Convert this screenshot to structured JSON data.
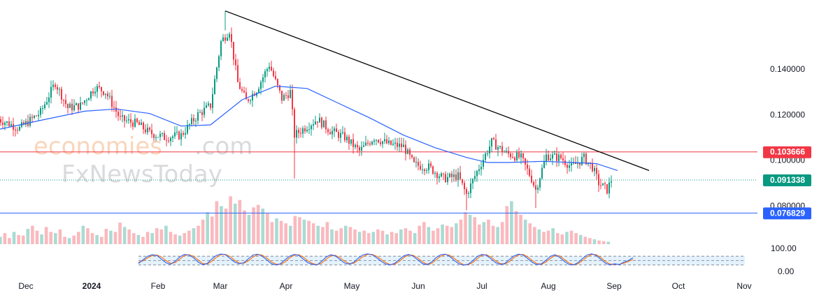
{
  "watermark": {
    "line1_left": "economies",
    "line1_right": ".com",
    "line2": "FxNewsToday"
  },
  "chart_data": {
    "type": "candlestick",
    "x_labels": [
      "Dec",
      "2024",
      "Feb",
      "Mar",
      "Apr",
      "May",
      "Jun",
      "Jul",
      "Aug",
      "Sep",
      "Oct",
      "Nov"
    ],
    "y_ticks": [
      "0.140000",
      "0.120000",
      "0.100000",
      "0.080000"
    ],
    "ylim": [
      0.071,
      0.168
    ],
    "price_tags": [
      {
        "label": "0.103666",
        "value": 0.103666,
        "color": "#f23645"
      },
      {
        "label": "0.091338",
        "value": 0.091338,
        "color": "#089981"
      },
      {
        "label": "0.076829",
        "value": 0.076829,
        "color": "#2962ff"
      }
    ],
    "horizontal_lines": [
      {
        "value": 0.103666,
        "color": "#f23645",
        "style": "solid"
      },
      {
        "value": 0.091338,
        "color": "#089981",
        "style": "dotted"
      },
      {
        "value": 0.076829,
        "color": "#2962ff",
        "style": "solid"
      }
    ],
    "trendline": {
      "from_date": "2024-03-12",
      "from_value": 0.1655,
      "to_date": "2024-09-30",
      "to_value": 0.0955,
      "color": "#000000"
    },
    "moving_average": {
      "color": "#2962ff",
      "points": [
        [
          "2023-11-25",
          0.1135
        ],
        [
          "2023-12-15",
          0.1175
        ],
        [
          "2024-01-05",
          0.1215
        ],
        [
          "2024-01-20",
          0.1225
        ],
        [
          "2024-02-05",
          0.1205
        ],
        [
          "2024-02-20",
          0.115
        ],
        [
          "2024-03-05",
          0.1155
        ],
        [
          "2024-03-20",
          0.1265
        ],
        [
          "2024-04-05",
          0.1325
        ],
        [
          "2024-04-20",
          0.1315
        ],
        [
          "2024-05-05",
          0.125
        ],
        [
          "2024-05-20",
          0.1185
        ],
        [
          "2024-06-05",
          0.111
        ],
        [
          "2024-06-20",
          0.1055
        ],
        [
          "2024-07-05",
          0.1012
        ],
        [
          "2024-07-15",
          0.099
        ],
        [
          "2024-07-25",
          0.099
        ],
        [
          "2024-08-10",
          0.0995
        ],
        [
          "2024-08-25",
          0.099
        ],
        [
          "2024-09-05",
          0.0985
        ],
        [
          "2024-09-15",
          0.0955
        ]
      ]
    },
    "price_path": [
      [
        "2023-11-25",
        0.118
      ],
      [
        "2023-12-05",
        0.114
      ],
      [
        "2023-12-15",
        0.121
      ],
      [
        "2023-12-22",
        0.134
      ],
      [
        "2023-12-28",
        0.123
      ],
      [
        "2024-01-03",
        0.124
      ],
      [
        "2024-01-10",
        0.132
      ],
      [
        "2024-01-15",
        0.13
      ],
      [
        "2024-01-22",
        0.118
      ],
      [
        "2024-01-30",
        0.116
      ],
      [
        "2024-02-05",
        0.112
      ],
      [
        "2024-02-12",
        0.11
      ],
      [
        "2024-02-20",
        0.111
      ],
      [
        "2024-02-28",
        0.12
      ],
      [
        "2024-03-05",
        0.124
      ],
      [
        "2024-03-10",
        0.152
      ],
      [
        "2024-03-14",
        0.157
      ],
      [
        "2024-03-18",
        0.134
      ],
      [
        "2024-03-22",
        0.126
      ],
      [
        "2024-03-27",
        0.131
      ],
      [
        "2024-04-02",
        0.142
      ],
      [
        "2024-04-08",
        0.127
      ],
      [
        "2024-04-12",
        0.13
      ],
      [
        "2024-04-14",
        0.111
      ],
      [
        "2024-04-20",
        0.115
      ],
      [
        "2024-04-25",
        0.118
      ],
      [
        "2024-05-01",
        0.113
      ],
      [
        "2024-05-08",
        0.11
      ],
      [
        "2024-05-15",
        0.104
      ],
      [
        "2024-05-22",
        0.11
      ],
      [
        "2024-05-29",
        0.107
      ],
      [
        "2024-06-05",
        0.106
      ],
      [
        "2024-06-10",
        0.098
      ],
      [
        "2024-06-17",
        0.097
      ],
      [
        "2024-06-24",
        0.092
      ],
      [
        "2024-07-01",
        0.093
      ],
      [
        "2024-07-05",
        0.085
      ],
      [
        "2024-07-10",
        0.095
      ],
      [
        "2024-07-17",
        0.108
      ],
      [
        "2024-07-24",
        0.103
      ],
      [
        "2024-07-31",
        0.101
      ],
      [
        "2024-08-05",
        0.092
      ],
      [
        "2024-08-07",
        0.087
      ],
      [
        "2024-08-12",
        0.102
      ],
      [
        "2024-08-19",
        0.101
      ],
      [
        "2024-08-24",
        0.097
      ],
      [
        "2024-08-30",
        0.101
      ],
      [
        "2024-09-03",
        0.097
      ],
      [
        "2024-09-06",
        0.09
      ],
      [
        "2024-09-10",
        0.087
      ],
      [
        "2024-09-12",
        0.0913
      ]
    ],
    "volume_levels": [
      0.12,
      0.18,
      0.1,
      0.2,
      0.15,
      0.14,
      0.25,
      0.3,
      0.22,
      0.16,
      0.28,
      0.2,
      0.18,
      0.24,
      0.12,
      0.1,
      0.14,
      0.2,
      0.3,
      0.26,
      0.18,
      0.15,
      0.12,
      0.25,
      0.22,
      0.2,
      0.35,
      0.28,
      0.24,
      0.18,
      0.15,
      0.12,
      0.2,
      0.18,
      0.26,
      0.24,
      0.3,
      0.2,
      0.16,
      0.14,
      0.18,
      0.22,
      0.26,
      0.3,
      0.4,
      0.52,
      0.45,
      0.7,
      0.62,
      0.58,
      0.78,
      0.66,
      0.72,
      0.55,
      0.48,
      0.6,
      0.64,
      0.58,
      0.5,
      0.36,
      0.42,
      0.38,
      0.34,
      0.3,
      0.46,
      0.44,
      0.4,
      0.38,
      0.34,
      0.3,
      0.28,
      0.36,
      0.24,
      0.22,
      0.26,
      0.3,
      0.28,
      0.24,
      0.2,
      0.22,
      0.18,
      0.2,
      0.24,
      0.22,
      0.16,
      0.2,
      0.18,
      0.24,
      0.26,
      0.22,
      0.18,
      0.3,
      0.36,
      0.28,
      0.22,
      0.26,
      0.32,
      0.3,
      0.28,
      0.34,
      0.4,
      0.52,
      0.48,
      0.44,
      0.32,
      0.36,
      0.4,
      0.3,
      0.28,
      0.36,
      0.62,
      0.7,
      0.54,
      0.48,
      0.4,
      0.34,
      0.28,
      0.24,
      0.2,
      0.22,
      0.26,
      0.18,
      0.16,
      0.2,
      0.22,
      0.18,
      0.15,
      0.12,
      0.1,
      0.08,
      0.06,
      0.05,
      0.04
    ],
    "oscillator": {
      "upper_label": "100.00",
      "lower_label": "0.00",
      "k_color": "#2962ff",
      "d_color": "#ff6d00",
      "band_fill": "#e3f2fd",
      "k": [
        30,
        55,
        80,
        90,
        85,
        60,
        35,
        25,
        45,
        75,
        92,
        88,
        70,
        40,
        22,
        30,
        60,
        85,
        95,
        90,
        65,
        40,
        28,
        35,
        62,
        88,
        94,
        80,
        55,
        30,
        20,
        28,
        55,
        80,
        92,
        86,
        60,
        35,
        25,
        20,
        45,
        75,
        90,
        82,
        58,
        34,
        26,
        38,
        66,
        88,
        96,
        90,
        70,
        45,
        26,
        20,
        32,
        58,
        84,
        92,
        80,
        55,
        30,
        22,
        40,
        70,
        90,
        94,
        78,
        50,
        28,
        18,
        25,
        48,
        78,
        92,
        86,
        62,
        36,
        24,
        30,
        56,
        82,
        94,
        88,
        64,
        38,
        22,
        28,
        52,
        80,
        90,
        72,
        45,
        24,
        20,
        36,
        64,
        88,
        96,
        84,
        58,
        32,
        20,
        28,
        22,
        40,
        50,
        70
      ],
      "d": [
        38,
        48,
        68,
        84,
        88,
        75,
        50,
        32,
        35,
        60,
        84,
        90,
        80,
        55,
        30,
        26,
        45,
        72,
        90,
        93,
        78,
        52,
        34,
        32,
        48,
        75,
        90,
        88,
        68,
        42,
        26,
        24,
        40,
        68,
        86,
        90,
        74,
        48,
        30,
        22,
        32,
        60,
        82,
        86,
        70,
        46,
        30,
        32,
        52,
        76,
        92,
        93,
        80,
        58,
        36,
        22,
        26,
        45,
        72,
        88,
        86,
        68,
        42,
        26,
        30,
        55,
        80,
        92,
        86,
        64,
        40,
        22,
        22,
        36,
        64,
        86,
        90,
        74,
        48,
        30,
        26,
        42,
        70,
        88,
        92,
        76,
        50,
        30,
        25,
        40,
        66,
        85,
        82,
        58,
        34,
        22,
        28,
        50,
        76,
        92,
        90,
        70,
        44,
        26,
        24,
        25,
        32,
        44,
        58
      ]
    }
  }
}
